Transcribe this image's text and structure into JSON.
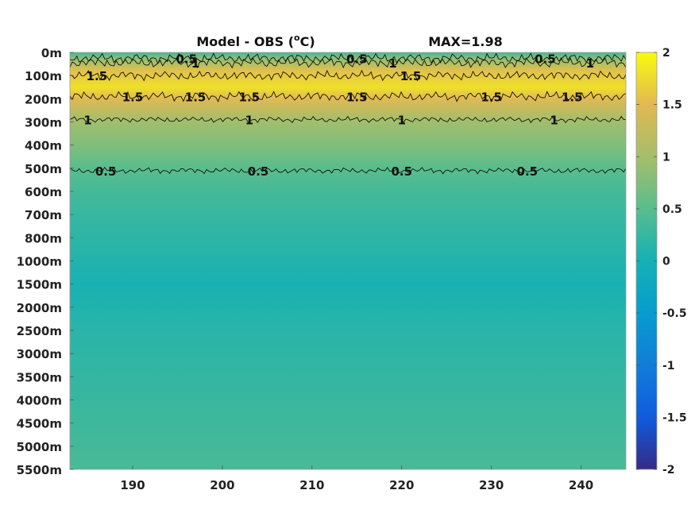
{
  "chart_data": {
    "type": "heatmap",
    "title": "Model - OBS (",
    "title_superscript": "o",
    "title_suffix": "C)",
    "max_text": "MAX=1.98",
    "x_ticks": [
      190,
      200,
      210,
      220,
      230,
      240
    ],
    "xlim": [
      183,
      245
    ],
    "y_tick_labels": [
      "0m",
      "100m",
      "200m",
      "300m",
      "400m",
      "500m",
      "600m",
      "700m",
      "800m",
      "1000m",
      "1500m",
      "2000m",
      "2500m",
      "3000m",
      "3500m",
      "4000m",
      "4500m",
      "5000m",
      "5500m"
    ],
    "colorbar": {
      "range": [
        -2,
        2
      ],
      "ticks": [
        2,
        1.5,
        1,
        0.5,
        0,
        -0.5,
        -1,
        -1.5,
        -2
      ],
      "tick_labels": [
        "2",
        "1.5",
        "1",
        "0.5",
        "0",
        "-0.5",
        "-1",
        "-1.5",
        "-2"
      ]
    },
    "depth_profile": [
      {
        "depth_level": 0,
        "value": 0.35
      },
      {
        "depth_level": 0.3,
        "value": 0.9
      },
      {
        "depth_level": 0.8,
        "value": 1.55
      },
      {
        "depth_level": 1.5,
        "value": 1.8
      },
      {
        "depth_level": 2.0,
        "value": 1.5
      },
      {
        "depth_level": 2.9,
        "value": 1.0
      },
      {
        "depth_level": 4.0,
        "value": 0.75
      },
      {
        "depth_level": 5.0,
        "value": 0.5
      },
      {
        "depth_level": 6.0,
        "value": 0.35
      },
      {
        "depth_level": 7.0,
        "value": 0.25
      },
      {
        "depth_level": 8.0,
        "value": 0.18
      },
      {
        "depth_level": 9.0,
        "value": 0.1
      },
      {
        "depth_level": 10.0,
        "value": 0.02
      },
      {
        "depth_level": 11.0,
        "value": 0.08
      },
      {
        "depth_level": 12.0,
        "value": 0.15
      },
      {
        "depth_level": 14.0,
        "value": 0.22
      },
      {
        "depth_level": 16.0,
        "value": 0.3
      },
      {
        "depth_level": 18.0,
        "value": 0.38
      }
    ],
    "contours": [
      {
        "level": 0.5,
        "label": "0.5",
        "depth_level": 0.25,
        "label_x": [
          196,
          215,
          236
        ]
      },
      {
        "level": 1,
        "label": "1",
        "depth_level": 0.45,
        "label_x": [
          197,
          219,
          241
        ]
      },
      {
        "level": 1.5,
        "label": "1.5",
        "depth_level": 1.0,
        "label_x": [
          186,
          221
        ]
      },
      {
        "level": 1.5,
        "label": "1.5",
        "depth_level": 1.9,
        "label_x": [
          190,
          197,
          203,
          215,
          230,
          239
        ]
      },
      {
        "level": 1,
        "label": "1",
        "depth_level": 2.9,
        "label_x": [
          185,
          203,
          220,
          237
        ]
      },
      {
        "level": 0.5,
        "label": "0.5",
        "depth_level": 5.1,
        "label_x": [
          187,
          204,
          220,
          234
        ]
      }
    ]
  }
}
